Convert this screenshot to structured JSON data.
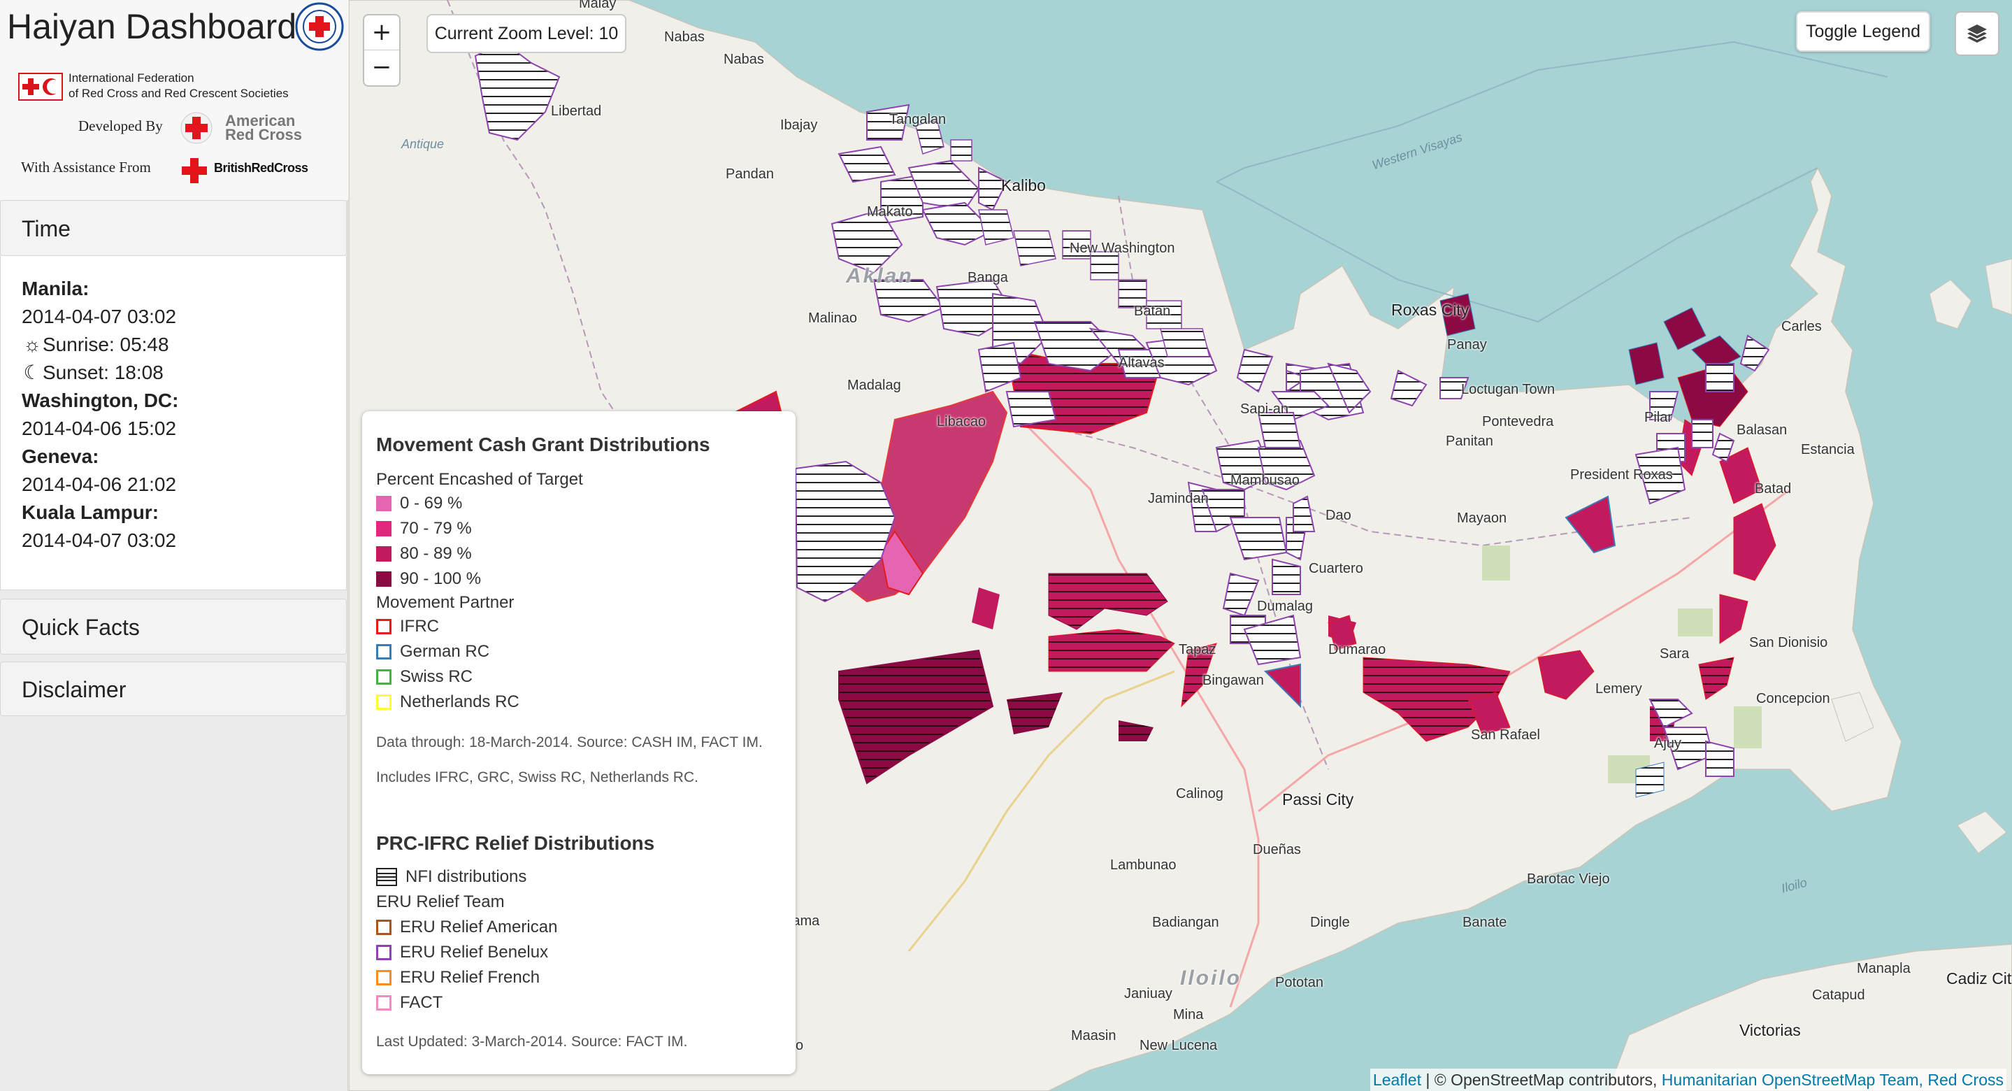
{
  "app": {
    "title": "Haiyan Dashboard",
    "ifrc_line1": "International Federation",
    "ifrc_line2": "of Red Cross and Red Crescent Societies",
    "developed_by_label": "Developed By",
    "arc_line1": "American",
    "arc_line2": "Red Cross",
    "assistance_label": "With Assistance From",
    "brc_name": "BritishRedCross"
  },
  "sidebar": {
    "time_header": "Time",
    "quick_facts_header": "Quick Facts",
    "disclaimer_header": "Disclaimer",
    "times": {
      "manila_label": "Manila:",
      "manila_time": "2014-04-07 03:02",
      "sunrise": "Sunrise: 05:48",
      "sunset": "Sunset: 18:08",
      "dc_label": "Washington, DC:",
      "dc_time": "2014-04-06 15:02",
      "geneva_label": "Geneva:",
      "geneva_time": "2014-04-06 21:02",
      "kl_label": "Kuala Lampur:",
      "kl_time": "2014-04-07 03:02"
    }
  },
  "map": {
    "zoom_in": "+",
    "zoom_out": "−",
    "zoom_label": "Current Zoom Level: 10",
    "toggle_legend": "Toggle Legend",
    "attribution": {
      "leaflet": "Leaflet",
      "osm": "| © OpenStreetMap contributors,",
      "hot": "Humanitarian OpenStreetMap Team,",
      "rc": "Red Cross"
    },
    "places": {
      "malay": "Malay",
      "nabas1": "Nabas",
      "nabas2": "Nabas",
      "libertad": "Libertad",
      "ibajay": "Ibajay",
      "tangalan": "Tangalan",
      "antique": "Antique",
      "pandan": "Pandan",
      "kalibo": "Kalibo",
      "makato": "Makato",
      "new_washington": "New Washington",
      "aklan": "Aklan",
      "banga": "Banga",
      "batan": "Batan",
      "malinao": "Malinao",
      "madalag": "Madalag",
      "altavas": "Altavas",
      "libacao": "Libacao",
      "western_visayas": "Western Visayas",
      "roxas": "Roxas City",
      "panay": "Panay",
      "carles": "Carles",
      "loctugan": "Loctugan Town",
      "pontevedra": "Pontevedra",
      "sapian": "Sapi-an",
      "panitan": "Panitan",
      "president_roxas": "President Roxas",
      "estancia": "Estancia",
      "balasan": "Balasan",
      "batad": "Batad",
      "pilar": "Pilar",
      "jamindan": "Jamindan",
      "mambusao": "Mambusao",
      "dao": "Dao",
      "mayaon": "Mayaon",
      "cuartero": "Cuartero",
      "dumalag": "Dumalag",
      "dumarao": "Dumarao",
      "tapaz": "Tapaz",
      "bingawan": "Bingawan",
      "lemery": "Lemery",
      "sara": "Sara",
      "san_dionisio": "San Dionisio",
      "concepcion": "Concepcion",
      "san_rafael": "San Rafael",
      "ajuy": "Ajuy",
      "calinog": "Calinog",
      "passi": "Passi City",
      "duenas": "Dueñas",
      "lambunao": "Lambunao",
      "barotac_viejo": "Barotac Viejo",
      "iloilo_sea": "Iloilo",
      "badiangan": "Badiangan",
      "dingle": "Dingle",
      "banate": "Banate",
      "iloilo_prov": "Iloilo",
      "pototan": "Pototan",
      "janiuay": "Janiuay",
      "mina": "Mina",
      "maasin": "Maasin",
      "new_lucena": "New Lucena",
      "manapla": "Manapla",
      "cadiz": "Cadiz City",
      "catapud": "Catapud",
      "victorias": "Victorias",
      "igbaras": "igio",
      "sibunag": "rrama"
    }
  },
  "legend": {
    "cash_title": "Movement Cash Grant Distributions",
    "pct_label": "Percent Encashed of Target",
    "bins": [
      {
        "label": "0 - 69 %",
        "color": "#e565b1"
      },
      {
        "label": "70 - 79 %",
        "color": "#e0287f"
      },
      {
        "label": "80 - 89 %",
        "color": "#c21a5d"
      },
      {
        "label": "90 - 100 %",
        "color": "#8c0a44"
      }
    ],
    "partner_label": "Movement Partner",
    "partners": [
      {
        "label": "IFRC",
        "color": "#e41a1c"
      },
      {
        "label": "German RC",
        "color": "#377eb8"
      },
      {
        "label": "Swiss RC",
        "color": "#4daf4a"
      },
      {
        "label": "Netherlands RC",
        "color": "#ffff33"
      }
    ],
    "data_note": "Data through: 18-March-2014. Source: CASH IM, FACT IM.",
    "includes_note": "Includes IFRC, GRC, Swiss RC, Netherlands RC.",
    "relief_title": "PRC-IFRC Relief Distributions",
    "nfi_label": "NFI distributions",
    "eru_label": "ERU Relief Team",
    "eru_teams": [
      {
        "label": "ERU Relief American",
        "color": "#a6561f"
      },
      {
        "label": "ERU Relief Benelux",
        "color": "#8e44ad"
      },
      {
        "label": "ERU Relief French",
        "color": "#ff8c1a"
      },
      {
        "label": "FACT",
        "color": "#f08cc4"
      }
    ],
    "updated_note": "Last Updated: 3-March-2014. Source: FACT IM."
  }
}
